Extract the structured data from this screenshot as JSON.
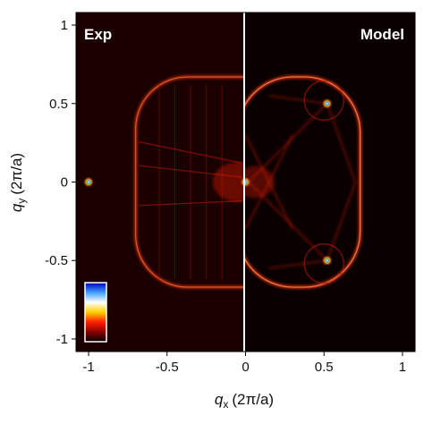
{
  "chart_data": {
    "type": "heatmap",
    "title": "",
    "panels": [
      {
        "label": "Exp",
        "x_range": [
          -1.08,
          0
        ]
      },
      {
        "label": "Model",
        "x_range": [
          0,
          1.08
        ]
      }
    ],
    "xlabel": {
      "symbol": "q",
      "sub": "x",
      "unit": "(2π/a)"
    },
    "ylabel": {
      "symbol": "q",
      "sub": "y",
      "unit": "(2π/a)"
    },
    "xlim": [
      -1.08,
      1.08
    ],
    "ylim": [
      -1.08,
      1.08
    ],
    "xticks": [
      -1,
      -0.5,
      0,
      0.5,
      1
    ],
    "yticks": [
      1,
      0.5,
      0,
      -0.5,
      -1
    ],
    "xtick_labels": [
      "-1",
      "-0.5",
      "0",
      "0.5",
      "1"
    ],
    "ytick_labels": [
      "1",
      "0.5",
      "0",
      "-0.5",
      "-1"
    ],
    "colormap": [
      "#000000",
      "#8b0000",
      "#ff2000",
      "#ffd000",
      "#ffffff",
      "#40a0ff",
      "#0000c0"
    ],
    "background_color": "#1a0000",
    "contour_color": "#ff3a10",
    "hot_spots": [
      {
        "x": 0.0,
        "y": 0.0
      },
      {
        "x": -1.0,
        "y": 0.0
      },
      {
        "x": 0.52,
        "y": 0.5
      },
      {
        "x": 0.52,
        "y": -0.5
      }
    ]
  }
}
